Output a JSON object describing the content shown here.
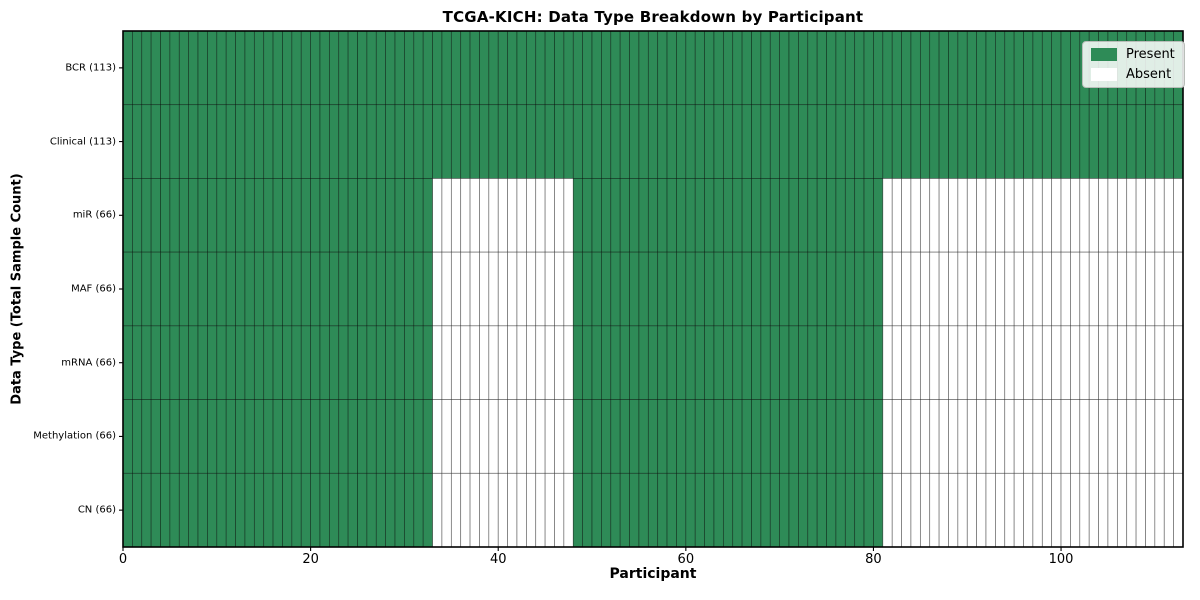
{
  "figure": {
    "background": "#ffffff"
  },
  "chart_data": {
    "type": "heatmap",
    "title": "TCGA-KICH: Data Type Breakdown by Participant",
    "xlabel": "Participant",
    "ylabel": "Data Type (Total Sample Count)",
    "xlim": [
      0,
      113
    ],
    "x_ticks": [
      0,
      20,
      40,
      60,
      80,
      100
    ],
    "n_participants": 113,
    "grid": false,
    "colors": {
      "present": "#2e8b57",
      "absent": "#ffffff",
      "edge": "#000000",
      "edge_opacity": 0.5,
      "spine": "#000000"
    },
    "legend": {
      "position": "upper right",
      "entries": [
        {
          "label": "Present",
          "color": "#2e8b57"
        },
        {
          "label": "Absent",
          "color": "#ffffff"
        }
      ]
    },
    "rows": [
      {
        "label": "BCR (113)",
        "data_type": "BCR",
        "total_samples": 113,
        "segments": [
          {
            "start": 0,
            "end": 113,
            "state": "present"
          }
        ]
      },
      {
        "label": "Clinical (113)",
        "data_type": "Clinical",
        "total_samples": 113,
        "segments": [
          {
            "start": 0,
            "end": 113,
            "state": "present"
          }
        ]
      },
      {
        "label": "miR (66)",
        "data_type": "miR",
        "total_samples": 66,
        "segments": [
          {
            "start": 0,
            "end": 33,
            "state": "present"
          },
          {
            "start": 33,
            "end": 48,
            "state": "absent"
          },
          {
            "start": 48,
            "end": 81,
            "state": "present"
          },
          {
            "start": 81,
            "end": 113,
            "state": "absent"
          }
        ]
      },
      {
        "label": "MAF (66)",
        "data_type": "MAF",
        "total_samples": 66,
        "segments": [
          {
            "start": 0,
            "end": 33,
            "state": "present"
          },
          {
            "start": 33,
            "end": 48,
            "state": "absent"
          },
          {
            "start": 48,
            "end": 81,
            "state": "present"
          },
          {
            "start": 81,
            "end": 113,
            "state": "absent"
          }
        ]
      },
      {
        "label": "mRNA (66)",
        "data_type": "mRNA",
        "total_samples": 66,
        "segments": [
          {
            "start": 0,
            "end": 33,
            "state": "present"
          },
          {
            "start": 33,
            "end": 48,
            "state": "absent"
          },
          {
            "start": 48,
            "end": 81,
            "state": "present"
          },
          {
            "start": 81,
            "end": 113,
            "state": "absent"
          }
        ]
      },
      {
        "label": "Methylation (66)",
        "data_type": "Methylation",
        "total_samples": 66,
        "segments": [
          {
            "start": 0,
            "end": 33,
            "state": "present"
          },
          {
            "start": 33,
            "end": 48,
            "state": "absent"
          },
          {
            "start": 48,
            "end": 81,
            "state": "present"
          },
          {
            "start": 81,
            "end": 113,
            "state": "absent"
          }
        ]
      },
      {
        "label": "CN (66)",
        "data_type": "CN",
        "total_samples": 66,
        "segments": [
          {
            "start": 0,
            "end": 33,
            "state": "present"
          },
          {
            "start": 33,
            "end": 48,
            "state": "absent"
          },
          {
            "start": 48,
            "end": 81,
            "state": "present"
          },
          {
            "start": 81,
            "end": 113,
            "state": "absent"
          }
        ]
      }
    ]
  }
}
